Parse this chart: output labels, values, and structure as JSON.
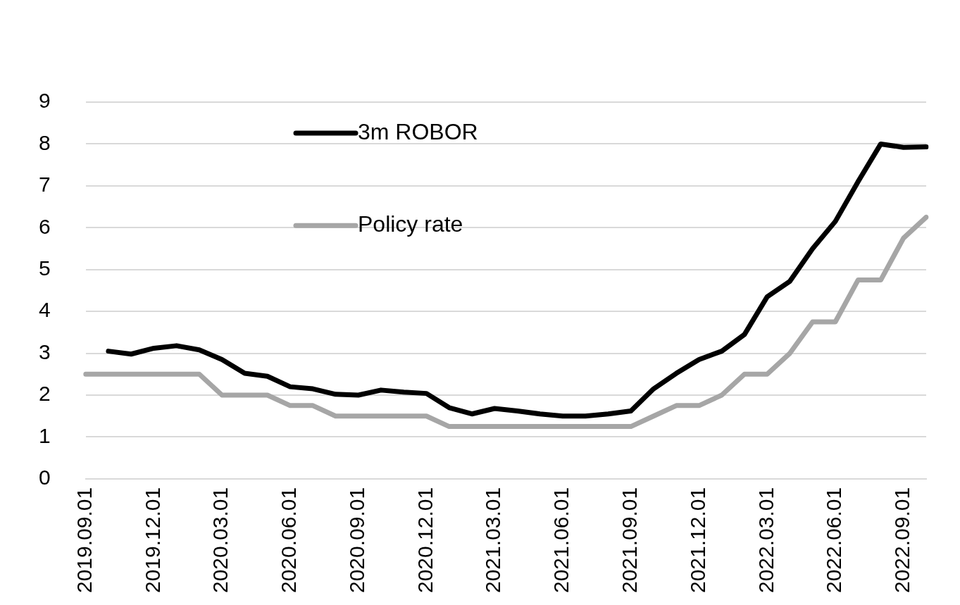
{
  "chart_data": {
    "type": "line",
    "categories": [
      "2019.09.01",
      null,
      null,
      "2019.12.01",
      null,
      null,
      "2020.03.01",
      null,
      null,
      "2020.06.01",
      null,
      null,
      "2020.09.01",
      null,
      null,
      "2020.12.01",
      null,
      null,
      "2021.03.01",
      null,
      null,
      "2021.06.01",
      null,
      null,
      "2021.09.01",
      null,
      null,
      "2021.12.01",
      null,
      null,
      "2022.03.01",
      null,
      null,
      "2022.06.01",
      null,
      null,
      "2022.09.01",
      null
    ],
    "series": [
      {
        "name": "3m ROBOR",
        "color": "#000000",
        "values": [
          null,
          3.05,
          2.98,
          3.12,
          3.18,
          3.08,
          2.85,
          2.52,
          2.45,
          2.2,
          2.15,
          2.02,
          2.0,
          2.12,
          2.07,
          2.04,
          1.7,
          1.55,
          1.68,
          1.62,
          1.55,
          1.5,
          1.5,
          1.55,
          1.62,
          2.15,
          2.52,
          2.85,
          3.05,
          3.45,
          4.35,
          4.72,
          5.5,
          6.15,
          7.1,
          8.0,
          7.92,
          7.93
        ]
      },
      {
        "name": "Policy rate",
        "color": "#a6a6a6",
        "values": [
          2.5,
          2.5,
          2.5,
          2.5,
          2.5,
          2.5,
          2.0,
          2.0,
          2.0,
          1.75,
          1.75,
          1.5,
          1.5,
          1.5,
          1.5,
          1.5,
          1.25,
          1.25,
          1.25,
          1.25,
          1.25,
          1.25,
          1.25,
          1.25,
          1.25,
          1.5,
          1.75,
          1.75,
          2.0,
          2.5,
          2.5,
          3.0,
          3.75,
          3.75,
          4.75,
          4.75,
          5.75,
          6.25
        ]
      }
    ],
    "ylim": [
      0,
      9
    ],
    "yticks": [
      0,
      1,
      2,
      3,
      4,
      5,
      6,
      7,
      8,
      9
    ],
    "grid": "y",
    "legend": "top",
    "marker": "none",
    "line_style": "solid"
  }
}
